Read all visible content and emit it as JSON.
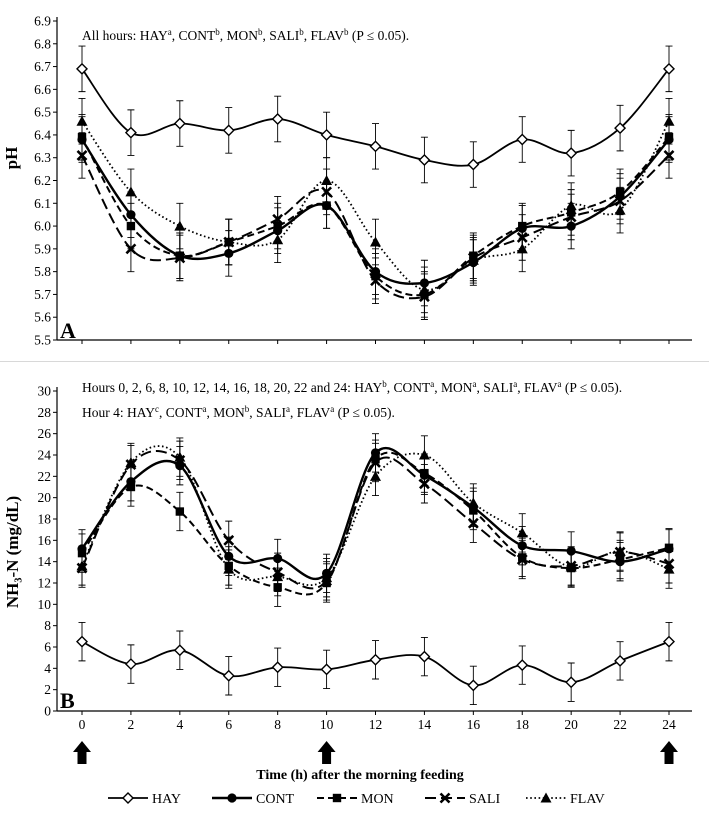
{
  "figure": {
    "xlabel": "Time (h) after the morning feeding",
    "x_ticks": [
      0,
      2,
      4,
      6,
      8,
      10,
      12,
      14,
      16,
      18,
      20,
      22,
      24
    ],
    "feeding_hours": [
      0,
      10,
      24
    ],
    "legend": [
      {
        "name": "HAY",
        "marker": "diamond",
        "dash": "solid"
      },
      {
        "name": "CONT",
        "marker": "circle",
        "dash": "solid"
      },
      {
        "name": "MON",
        "marker": "square",
        "dash": "dashed"
      },
      {
        "name": "SALI",
        "marker": "cross",
        "dash": "longdash"
      },
      {
        "name": "FLAV",
        "marker": "triangle",
        "dash": "dotted"
      }
    ]
  },
  "chart_data": [
    {
      "type": "line",
      "panel": "A",
      "ylabel": "pH",
      "ylim": [
        5.5,
        6.9
      ],
      "yticks": [
        "5.5",
        "5.6",
        "5.7",
        "5.8",
        "5.9",
        "6.0",
        "6.1",
        "6.2",
        "6.3",
        "6.4",
        "6.5",
        "6.6",
        "6.7",
        "6.8",
        "6.9"
      ],
      "x": [
        0,
        2,
        4,
        6,
        8,
        10,
        12,
        14,
        16,
        18,
        20,
        22,
        24
      ],
      "annotation": {
        "parts": [
          {
            "t": "All hours: HAY"
          },
          {
            "t": "a",
            "sup": true
          },
          {
            "t": ", CONT"
          },
          {
            "t": "b",
            "sup": true
          },
          {
            "t": ", MON"
          },
          {
            "t": "b",
            "sup": true
          },
          {
            "t": ", SALI"
          },
          {
            "t": "b",
            "sup": true
          },
          {
            "t": ", FLAV"
          },
          {
            "t": "b",
            "sup": true
          },
          {
            "t": " (P ≤ 0.05)."
          }
        ]
      },
      "series": [
        {
          "name": "HAY",
          "values": [
            6.69,
            6.41,
            6.45,
            6.42,
            6.47,
            6.4,
            6.35,
            6.29,
            6.27,
            6.38,
            6.32,
            6.43,
            6.69
          ],
          "err": 0.1
        },
        {
          "name": "CONT",
          "values": [
            6.38,
            6.05,
            5.87,
            5.88,
            5.98,
            6.09,
            5.8,
            5.75,
            5.84,
            5.99,
            6.0,
            6.13,
            6.38
          ],
          "err": 0.1
        },
        {
          "name": "MON",
          "values": [
            6.39,
            6.0,
            5.87,
            5.93,
            6.0,
            6.09,
            5.78,
            5.7,
            5.87,
            6.0,
            6.06,
            6.15,
            6.39
          ],
          "err": 0.1
        },
        {
          "name": "SALI",
          "values": [
            6.31,
            5.9,
            5.86,
            5.93,
            6.03,
            6.15,
            5.76,
            5.69,
            5.86,
            5.95,
            6.04,
            6.11,
            6.31
          ],
          "err": 0.1
        },
        {
          "name": "FLAV",
          "values": [
            6.46,
            6.15,
            6.0,
            5.93,
            5.94,
            6.2,
            5.93,
            5.72,
            5.85,
            5.9,
            6.09,
            6.07,
            6.46
          ],
          "err": 0.1
        }
      ]
    },
    {
      "type": "line",
      "panel": "B",
      "ylabel": "NH₃-N (mg/dL)",
      "ylim": [
        0,
        30
      ],
      "yticks": [
        "0",
        "2",
        "4",
        "6",
        "8",
        "10",
        "12",
        "14",
        "16",
        "18",
        "20",
        "22",
        "24",
        "26",
        "28",
        "30"
      ],
      "x": [
        0,
        2,
        4,
        6,
        8,
        10,
        12,
        14,
        16,
        18,
        20,
        22,
        24
      ],
      "annotations": [
        {
          "parts": [
            {
              "t": "Hours 0, 2, 6, 8, 10, 12, 14, 16, 18, 20, 22 and 24: HAY"
            },
            {
              "t": "b",
              "sup": true
            },
            {
              "t": ", CONT"
            },
            {
              "t": "a",
              "sup": true
            },
            {
              "t": ", MON"
            },
            {
              "t": "a",
              "sup": true
            },
            {
              "t": ", SALI"
            },
            {
              "t": "a",
              "sup": true
            },
            {
              "t": ", FLAV"
            },
            {
              "t": "a",
              "sup": true
            },
            {
              "t": " (P ≤ 0.05)."
            }
          ]
        },
        {
          "parts": [
            {
              "t": "Hour 4: HAY"
            },
            {
              "t": "c",
              "sup": true
            },
            {
              "t": ", CONT"
            },
            {
              "t": "a",
              "sup": true
            },
            {
              "t": ", MON"
            },
            {
              "t": "b",
              "sup": true
            },
            {
              "t": ", SALI"
            },
            {
              "t": "a",
              "sup": true
            },
            {
              "t": ", FLAV"
            },
            {
              "t": "a",
              "sup": true
            },
            {
              "t": " (P ≤ 0.05)."
            }
          ]
        }
      ],
      "series": [
        {
          "name": "HAY",
          "values": [
            6.5,
            4.4,
            5.7,
            3.3,
            4.1,
            3.9,
            4.8,
            5.1,
            2.4,
            4.3,
            2.7,
            4.7,
            6.5
          ],
          "err": 1.8
        },
        {
          "name": "CONT",
          "values": [
            15.2,
            21.5,
            23.0,
            14.5,
            14.3,
            12.9,
            24.2,
            22.1,
            19.1,
            15.5,
            15.0,
            14.0,
            15.2
          ],
          "err": 1.8
        },
        {
          "name": "MON",
          "values": [
            14.8,
            21.0,
            18.7,
            13.6,
            11.6,
            12.0,
            23.6,
            22.3,
            18.8,
            14.4,
            13.4,
            14.2,
            15.3
          ],
          "err": 1.8
        },
        {
          "name": "SALI",
          "values": [
            13.4,
            23.1,
            23.5,
            16.0,
            13.0,
            12.2,
            23.3,
            21.3,
            17.6,
            14.2,
            13.6,
            14.9,
            13.8
          ],
          "err": 1.8
        },
        {
          "name": "FLAV",
          "values": [
            13.6,
            23.3,
            23.8,
            13.3,
            12.6,
            12.5,
            22.0,
            24.0,
            19.5,
            16.7,
            13.5,
            15.0,
            13.3
          ],
          "err": 1.8
        }
      ]
    }
  ]
}
